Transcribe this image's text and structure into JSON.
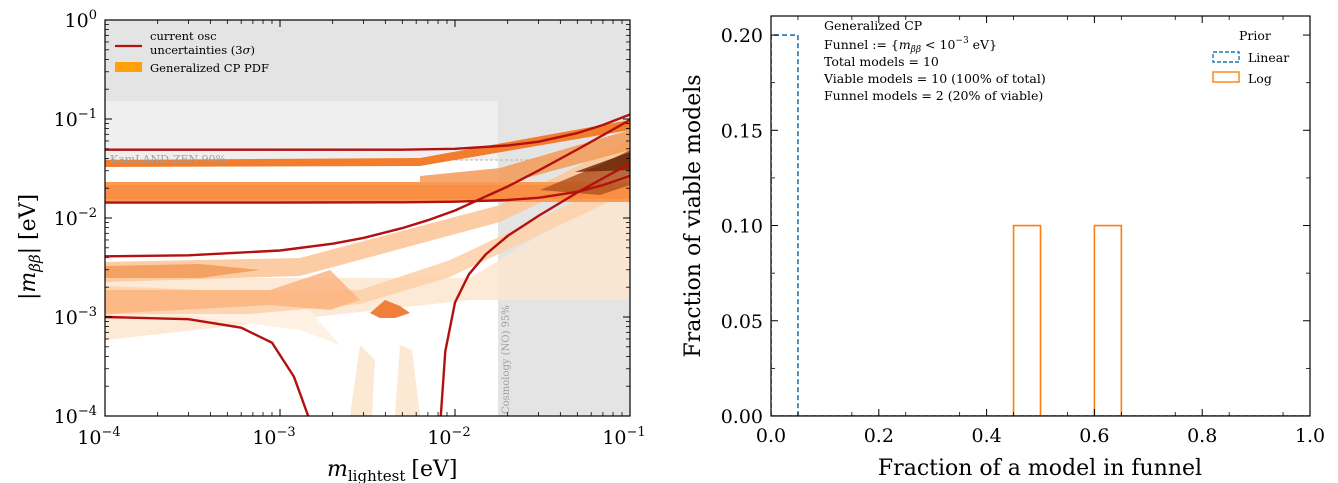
{
  "chart_data": [
    {
      "type": "line",
      "scale": {
        "x": "log",
        "y": "log"
      },
      "xlim": [
        0.0001,
        0.1
      ],
      "ylim": [
        0.0001,
        1
      ],
      "xticks": [
        "10^-4",
        "10^-3",
        "10^-2",
        "10^-1"
      ],
      "yticks": [
        "10^-4",
        "10^-3",
        "10^-2",
        "10^-1",
        "10^0"
      ],
      "xlabel": {
        "main": "m",
        "sub": "lightest",
        "unit": "[eV]"
      },
      "ylabel": {
        "main": "|m",
        "sub": "ββ",
        "unit": "| [eV]"
      },
      "legend": {
        "placement": "top-left",
        "entries": [
          {
            "label": "current osc uncertainties (3σ)",
            "line1": "current osc",
            "line2": "uncertainties (3σ)",
            "color": "#b31010",
            "kind": "line"
          },
          {
            "label": "Generalized CP PDF",
            "color": "#ff9f0a",
            "kind": "patch"
          }
        ]
      },
      "annotations": {
        "kamland": "KamLAND-ZEN 90%",
        "cosmology": "Cosmology (NO) 95%"
      },
      "excluded_regions": {
        "kamland_upper_limit_eV": 0.036,
        "top_band_from_eV": 0.16,
        "cosmology_mlightest_from_eV": 0.0178
      },
      "osc_contours": [
        {
          "name": "IO upper",
          "x": [
            0.0001,
            0.001,
            0.005,
            0.01,
            0.02,
            0.03,
            0.05,
            0.07,
            0.1
          ],
          "y": [
            0.049,
            0.049,
            0.049,
            0.05,
            0.054,
            0.059,
            0.072,
            0.087,
            0.111
          ]
        },
        {
          "name": "IO lower",
          "x": [
            0.0001,
            0.001,
            0.005,
            0.01,
            0.02,
            0.03,
            0.05,
            0.07,
            0.1
          ],
          "y": [
            0.0143,
            0.0143,
            0.0144,
            0.0146,
            0.0152,
            0.016,
            0.0184,
            0.0215,
            0.0266
          ]
        },
        {
          "name": "NO upper",
          "x": [
            0.0001,
            0.0003,
            0.001,
            0.002,
            0.003,
            0.005,
            0.007,
            0.01,
            0.02,
            0.03,
            0.05,
            0.07,
            0.1
          ],
          "y": [
            0.0041,
            0.0042,
            0.0047,
            0.0055,
            0.0063,
            0.0079,
            0.0095,
            0.0119,
            0.0208,
            0.0301,
            0.0492,
            0.0686,
            0.098
          ]
        },
        {
          "name": "NO lower",
          "x": [
            0.0001,
            0.0003,
            0.0006,
            0.0009,
            0.0012,
            0.00145
          ],
          "y": [
            0.001,
            0.00095,
            0.00078,
            0.00055,
            0.00025,
            0.0001
          ]
        },
        {
          "name": "NO lower (right branch)",
          "x": [
            0.0083,
            0.0088,
            0.01,
            0.012,
            0.015,
            0.02,
            0.03,
            0.05,
            0.07,
            0.1
          ],
          "y": [
            0.0001,
            0.00045,
            0.0014,
            0.0027,
            0.0043,
            0.0066,
            0.0105,
            0.0181,
            0.0252,
            0.0355
          ]
        }
      ]
    },
    {
      "type": "histogram",
      "xlim": [
        0,
        1
      ],
      "ylim": [
        0,
        0.21
      ],
      "xticks": [
        "0.0",
        "0.2",
        "0.4",
        "0.6",
        "0.8",
        "1.0"
      ],
      "yticks": [
        "0.00",
        "0.05",
        "0.10",
        "0.15",
        "0.20"
      ],
      "xlabel": "Fraction of a model in funnel",
      "ylabel": "Fraction of viable models",
      "bin_width": 0.05,
      "series": [
        {
          "name": "Linear",
          "style": "dashed",
          "color": "#1f77b4",
          "bins": [
            {
              "x0": 0.0,
              "x1": 0.05,
              "value": 0.2
            }
          ]
        },
        {
          "name": "Log",
          "style": "solid",
          "color": "#ff7f0e",
          "bins": [
            {
              "x0": 0.0,
              "x1": 0.05,
              "value": 0.0
            },
            {
              "x0": 0.45,
              "x1": 0.5,
              "value": 0.1
            },
            {
              "x0": 0.6,
              "x1": 0.65,
              "value": 0.1
            }
          ]
        }
      ],
      "legend": {
        "placement": "top-right",
        "title": "Prior",
        "entries": [
          "Linear",
          "Log"
        ]
      },
      "info_box": [
        "Generalized CP",
        "Funnel := {m_ββ < 10^-3 eV}",
        "Total models = 10",
        "Viable models = 10 (100% of total)",
        "Funnel models = 2 (20% of viable)"
      ]
    }
  ]
}
